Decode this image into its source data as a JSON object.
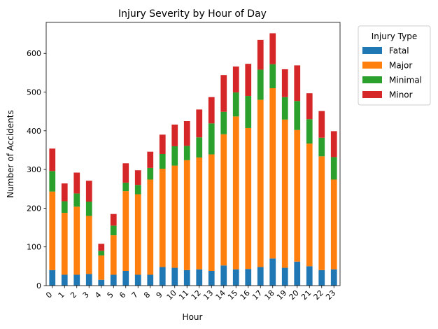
{
  "chart_data": {
    "type": "bar",
    "stacked": true,
    "title": "Injury Severity by Hour of Day",
    "xlabel": "Hour",
    "ylabel": "Number of Accidents",
    "ylim": [
      0,
      680
    ],
    "yticks": [
      0,
      100,
      200,
      300,
      400,
      500,
      600
    ],
    "grid": false,
    "legend": {
      "title": "Injury Type",
      "placement": "outside-top-right"
    },
    "categories": [
      "0",
      "1",
      "2",
      "3",
      "4",
      "5",
      "6",
      "7",
      "8",
      "9",
      "10",
      "11",
      "12",
      "13",
      "14",
      "15",
      "16",
      "17",
      "18",
      "19",
      "20",
      "21",
      "22",
      "23"
    ],
    "series": [
      {
        "name": "Fatal",
        "color": "#1f77b4",
        "values": [
          40,
          28,
          28,
          30,
          15,
          28,
          38,
          28,
          28,
          48,
          46,
          40,
          42,
          38,
          52,
          42,
          43,
          48,
          70,
          46,
          62,
          50,
          40,
          42
        ]
      },
      {
        "name": "Major",
        "color": "#ff7f0e",
        "values": [
          203,
          160,
          176,
          150,
          63,
          102,
          206,
          208,
          246,
          254,
          264,
          284,
          289,
          301,
          339,
          395,
          364,
          432,
          440,
          383,
          340,
          317,
          294,
          232
        ]
      },
      {
        "name": "Minimal",
        "color": "#2ca02c",
        "values": [
          53,
          30,
          34,
          37,
          12,
          25,
          22,
          24,
          30,
          38,
          50,
          37,
          52,
          80,
          58,
          62,
          83,
          78,
          62,
          58,
          75,
          63,
          48,
          58
        ]
      },
      {
        "name": "Minor",
        "color": "#d62728",
        "values": [
          58,
          46,
          54,
          54,
          18,
          30,
          50,
          38,
          42,
          50,
          56,
          64,
          72,
          68,
          95,
          67,
          83,
          77,
          80,
          72,
          92,
          67,
          69,
          67
        ]
      }
    ]
  }
}
